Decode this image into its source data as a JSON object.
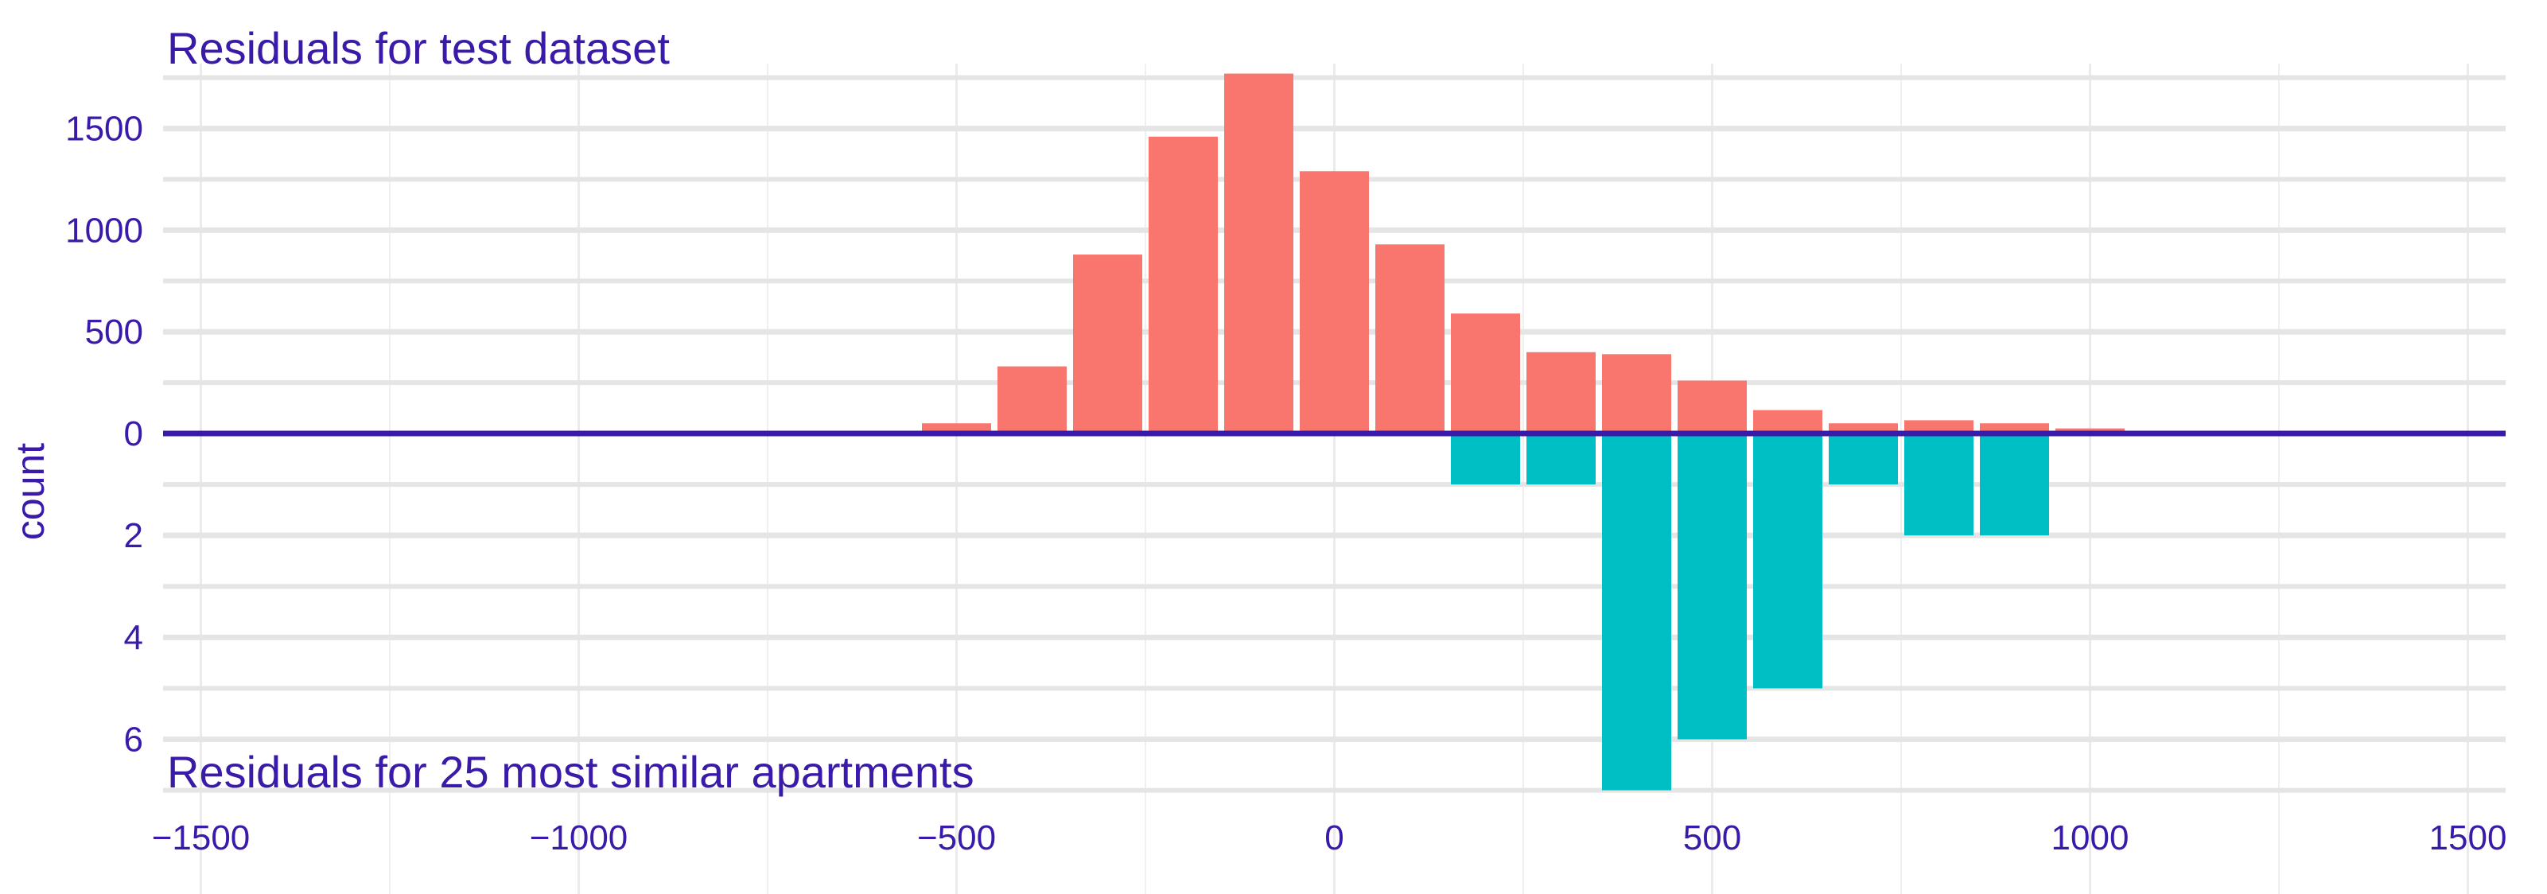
{
  "chart_data": {
    "type": "bar",
    "layout": "mirrored-histogram",
    "bin_width": 100,
    "xlim": [
      -1550,
      1550
    ],
    "x_ticks": [
      -1500,
      -1000,
      -500,
      0,
      500,
      1000,
      1500
    ],
    "x_tick_labels": [
      "−1500",
      "−1000",
      "−500",
      "0",
      "500",
      "1000",
      "1500"
    ],
    "ylabel": "count",
    "grid": true,
    "colors": {
      "top": "#F8766D",
      "bottom": "#00BFC4",
      "axis_line": "#3a1aa8",
      "text": "#3a1aa8",
      "grid": "#e5e5e5"
    },
    "panels": [
      {
        "name": "Residuals for test dataset",
        "position": "top",
        "title": "Residuals for test dataset",
        "y_ticks": [
          0,
          500,
          1000,
          1500
        ],
        "y_tick_labels": [
          "0",
          "500",
          "1000",
          "1500"
        ],
        "ylim": [
          0,
          1780
        ],
        "x": [
          -500,
          -400,
          -300,
          -200,
          -100,
          0,
          100,
          200,
          300,
          400,
          500,
          600,
          700,
          800,
          900,
          1000
        ],
        "values": [
          50,
          330,
          880,
          1460,
          1770,
          1290,
          930,
          590,
          400,
          390,
          260,
          115,
          50,
          65,
          50,
          25
        ]
      },
      {
        "name": "Residuals for 25 most similar apartments",
        "position": "bottom",
        "title": "Residuals for 25 most similar apartments",
        "y_ticks": [
          0,
          2,
          4,
          6
        ],
        "y_tick_labels": [
          "0",
          "2",
          "4",
          "6"
        ],
        "ylim": [
          0,
          7.1
        ],
        "x": [
          200,
          300,
          400,
          500,
          600,
          700,
          800,
          900
        ],
        "values": [
          1,
          1,
          7,
          6,
          5,
          1,
          2,
          2
        ]
      }
    ]
  }
}
